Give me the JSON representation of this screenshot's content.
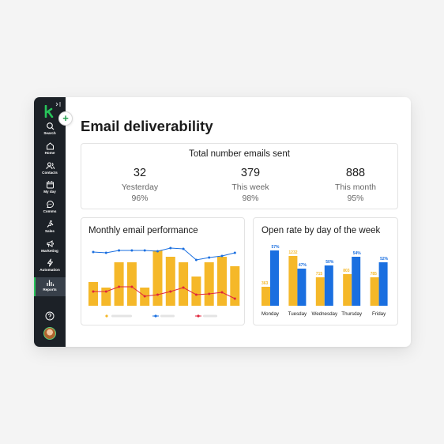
{
  "page": {
    "title": "Email deliverability"
  },
  "sidebar": {
    "items": [
      {
        "label": "Search",
        "icon": "search-icon"
      },
      {
        "label": "Home",
        "icon": "home-icon"
      },
      {
        "label": "Contacts",
        "icon": "contacts-icon"
      },
      {
        "label": "My day",
        "icon": "calendar-icon"
      },
      {
        "label": "Comms",
        "icon": "chat-icon"
      },
      {
        "label": "Sales",
        "icon": "sales-icon"
      },
      {
        "label": "Marketing",
        "icon": "megaphone-icon"
      },
      {
        "label": "Automation",
        "icon": "lightning-icon"
      },
      {
        "label": "Reports",
        "icon": "bar-chart-icon",
        "active": true
      }
    ]
  },
  "totals": {
    "title": "Total number emails sent",
    "stats": [
      {
        "value": "32",
        "period": "Yesterday",
        "percent": "96%"
      },
      {
        "value": "379",
        "period": "This week",
        "percent": "98%"
      },
      {
        "value": "888",
        "period": "This month",
        "percent": "95%"
      }
    ]
  },
  "colors": {
    "yellow": "#f5b829",
    "blue": "#1a6fe0",
    "red": "#e0263c",
    "brand_green": "#28c45a",
    "sidebar": "#1c2127"
  },
  "monthly": {
    "title": "Monthly email performance",
    "chart_data": {
      "type": "bar",
      "bars": [
        30,
        23,
        55,
        55,
        23,
        70,
        62,
        55,
        37,
        55,
        62,
        50
      ],
      "series": [
        {
          "values": [
            68,
            67,
            70,
            70,
            70,
            69,
            73,
            72,
            58,
            61,
            63,
            67
          ]
        },
        {
          "values": [
            18,
            18,
            24,
            24,
            12,
            14,
            18,
            23,
            14,
            15,
            17,
            9
          ]
        }
      ],
      "ylim": [
        0,
        80
      ]
    }
  },
  "openrate": {
    "title": "Open rate by day of the week",
    "chart_data": {
      "type": "bar",
      "categories": [
        "Monday",
        "Tuesday",
        "Wednesday",
        "Thursday",
        "Friday"
      ],
      "series": [
        {
          "values": [
            24,
            63,
            36,
            40,
            36
          ],
          "labels": [
            "363",
            "1232",
            "715",
            "803",
            "785"
          ]
        },
        {
          "values": [
            70,
            47,
            51,
            62,
            55
          ],
          "labels": [
            "57%",
            "47%",
            "50%",
            "54%",
            "52%"
          ]
        }
      ],
      "ylim": [
        0,
        80
      ]
    }
  }
}
